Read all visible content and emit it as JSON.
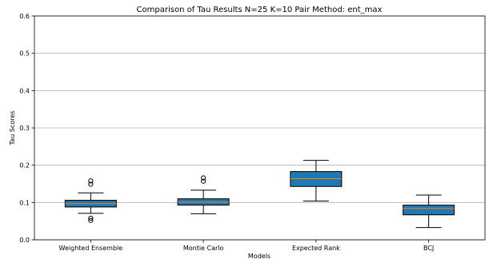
{
  "chart_data": {
    "type": "box",
    "title": "Comparison of Tau Results N=25 K=10 Pair Method: ent_max",
    "xlabel": "Models",
    "ylabel": "Tau Scores",
    "ylim": [
      0,
      0.6
    ],
    "yticks": [
      "0.0",
      "0.1",
      "0.2",
      "0.3",
      "0.4",
      "0.5",
      "0.6"
    ],
    "grid": "horizontal",
    "box_color": "#1f77b4",
    "median_color": "#ff7f0e",
    "categories": [
      "Weighted Ensemble",
      "Montie Carlo",
      "Expected Rank",
      "BCJ"
    ],
    "boxes": [
      {
        "name": "Weighted Ensemble",
        "whisker_low": 0.071,
        "q1": 0.088,
        "median": 0.097,
        "q3": 0.106,
        "whisker_high": 0.126,
        "outliers": [
          0.158,
          0.149,
          0.058,
          0.052
        ]
      },
      {
        "name": "Montie Carlo",
        "whisker_low": 0.07,
        "q1": 0.093,
        "median": 0.101,
        "q3": 0.11,
        "whisker_high": 0.133,
        "outliers": [
          0.166,
          0.157
        ]
      },
      {
        "name": "Expected Rank",
        "whisker_low": 0.104,
        "q1": 0.143,
        "median": 0.164,
        "q3": 0.183,
        "whisker_high": 0.213,
        "outliers": []
      },
      {
        "name": "BCJ",
        "whisker_low": 0.033,
        "q1": 0.067,
        "median": 0.084,
        "q3": 0.093,
        "whisker_high": 0.12,
        "outliers": []
      }
    ]
  }
}
